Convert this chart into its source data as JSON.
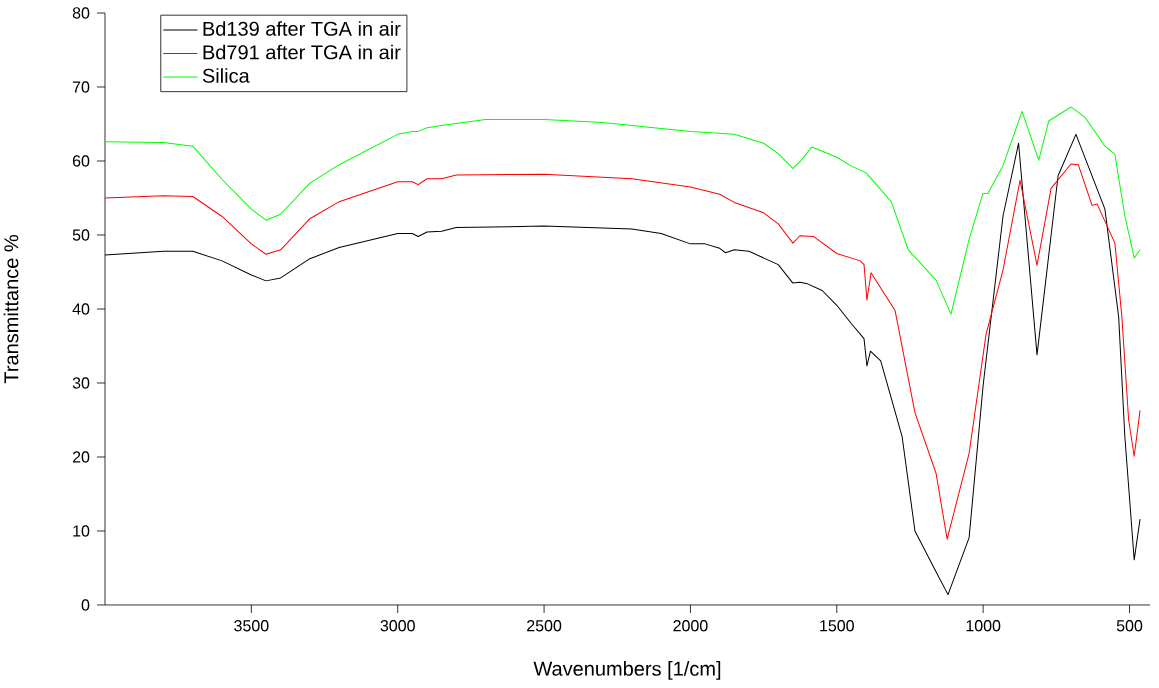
{
  "chart_data": {
    "type": "line",
    "xlabel": "Wavenumbers [1/cm]",
    "ylabel": "Transmittance %",
    "xlim": [
      4000,
      430
    ],
    "xticks": [
      3500,
      3000,
      2500,
      2000,
      1500,
      1000,
      500
    ],
    "ylim": [
      0,
      80
    ],
    "yticks": [
      0,
      10,
      20,
      30,
      40,
      50,
      60,
      70,
      80
    ],
    "grid": false,
    "legend": "top left",
    "marker": "none",
    "line_style": "solid",
    "series": [
      {
        "name": "Bd139 after TGA in air",
        "color": "#000000",
        "x": [
          4000,
          3800,
          3700,
          3600,
          3500,
          3450,
          3400,
          3300,
          3200,
          3000,
          2950,
          2930,
          2900,
          2850,
          2800,
          2500,
          2200,
          2100,
          2000,
          1950,
          1900,
          1880,
          1850,
          1800,
          1700,
          1650,
          1626,
          1600,
          1550,
          1500,
          1450,
          1407,
          1397,
          1385,
          1350,
          1277,
          1233,
          1161,
          1120,
          1048,
          1000,
          932,
          879,
          816,
          744,
          683,
          584,
          537,
          516,
          484,
          464
        ],
        "values": [
          47.3,
          47.8,
          47.8,
          46.5,
          44.6,
          43.8,
          44.2,
          46.8,
          48.3,
          50.2,
          50.2,
          49.8,
          50.4,
          50.5,
          51.0,
          51.2,
          50.8,
          50.2,
          48.8,
          48.8,
          48.2,
          47.6,
          48.0,
          47.8,
          46.0,
          43.5,
          43.6,
          43.4,
          42.5,
          40.5,
          38.0,
          36.0,
          32.3,
          34.3,
          33.0,
          22.8,
          10.0,
          4.5,
          1.4,
          9.1,
          29.7,
          52.6,
          62.4,
          33.8,
          58.0,
          63.6,
          53.5,
          38.9,
          22.8,
          6.1,
          11.6
        ]
      },
      {
        "name": "Bd791 after TGA in air",
        "color": "#ff0000",
        "x": [
          4000,
          3800,
          3700,
          3600,
          3500,
          3450,
          3400,
          3300,
          3200,
          3000,
          2950,
          2930,
          2900,
          2850,
          2800,
          2500,
          2200,
          2000,
          1900,
          1850,
          1750,
          1700,
          1650,
          1626,
          1580,
          1500,
          1420,
          1407,
          1397,
          1383,
          1301,
          1233,
          1161,
          1123,
          1048,
          990,
          932,
          874,
          816,
          768,
          700,
          675,
          652,
          628,
          611,
          550,
          526,
          503,
          484,
          464
        ],
        "values": [
          55.0,
          55.3,
          55.2,
          52.5,
          48.8,
          47.4,
          48.0,
          52.2,
          54.5,
          57.2,
          57.2,
          56.8,
          57.6,
          57.6,
          58.1,
          58.2,
          57.6,
          56.5,
          55.5,
          54.4,
          53.0,
          51.5,
          48.9,
          49.9,
          49.8,
          47.5,
          46.5,
          46.0,
          41.2,
          44.9,
          39.8,
          26.0,
          17.8,
          8.9,
          20.5,
          36.6,
          45.3,
          57.4,
          45.9,
          56.3,
          59.6,
          59.5,
          56.8,
          54.0,
          54.2,
          48.9,
          38.9,
          25.0,
          20.1,
          26.3
        ]
      },
      {
        "name": "Silica",
        "color": "#00ff00",
        "x": [
          4000,
          3800,
          3700,
          3600,
          3500,
          3450,
          3400,
          3300,
          3200,
          3000,
          2950,
          2930,
          2900,
          2850,
          2700,
          2500,
          2300,
          2000,
          1850,
          1750,
          1700,
          1650,
          1626,
          1585,
          1500,
          1450,
          1400,
          1314,
          1256,
          1161,
          1110,
          1048,
          1001,
          984,
          932,
          867,
          810,
          776,
          700,
          652,
          584,
          550,
          516,
          484,
          464
        ],
        "values": [
          62.6,
          62.5,
          62.0,
          57.5,
          53.5,
          52.0,
          52.8,
          57.0,
          59.5,
          63.6,
          64.0,
          64.0,
          64.5,
          64.8,
          65.6,
          65.6,
          65.2,
          64.0,
          63.6,
          62.4,
          61.0,
          59.0,
          59.9,
          61.9,
          60.5,
          59.3,
          58.4,
          54.5,
          48.0,
          43.9,
          39.3,
          49.4,
          55.6,
          55.6,
          59.4,
          66.7,
          60.1,
          65.4,
          67.3,
          65.9,
          62.0,
          60.9,
          52.6,
          46.9,
          48.0
        ]
      }
    ]
  }
}
